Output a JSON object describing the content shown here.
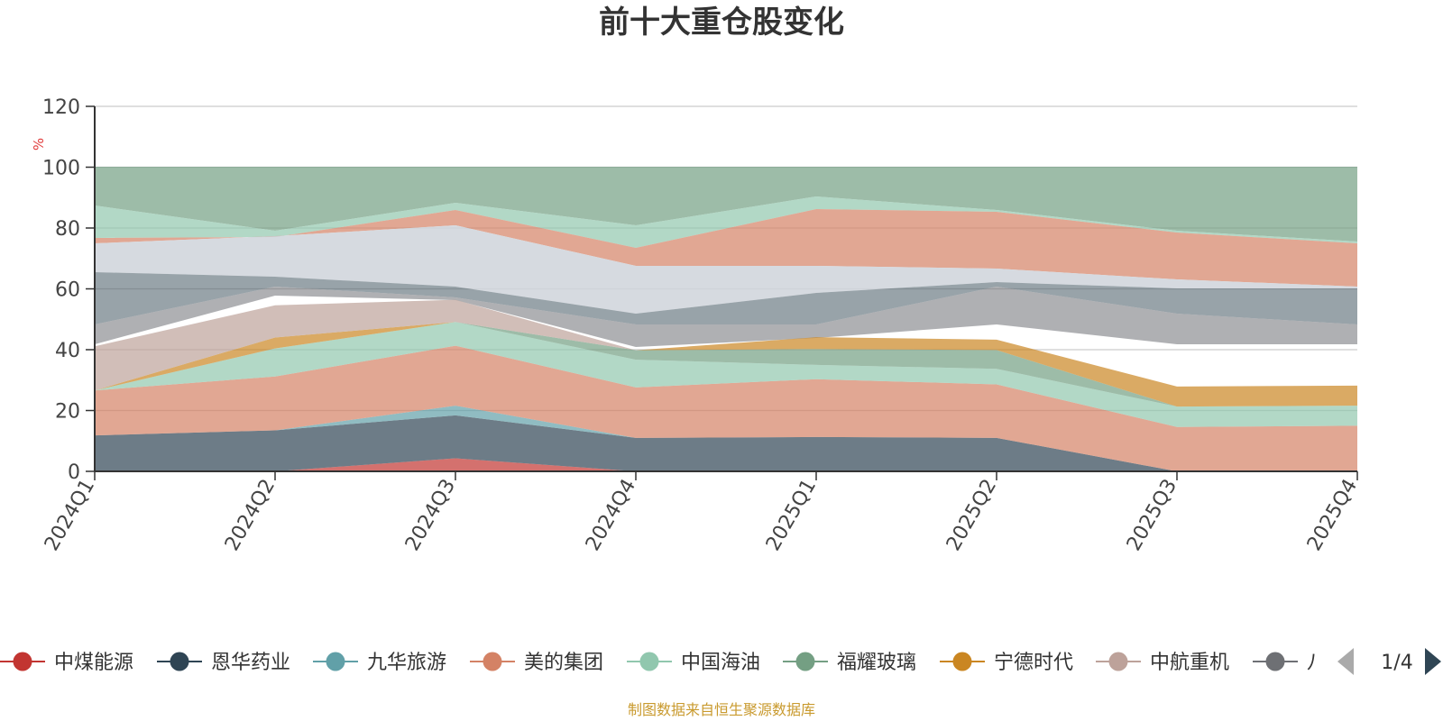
{
  "chart_data": {
    "type": "area",
    "title": "前十大重仓股变化",
    "ylabel": "%",
    "ylim": [
      0,
      120
    ],
    "yticks": [
      0,
      20,
      40,
      60,
      80,
      100,
      120
    ],
    "grid": true,
    "categories": [
      "2024Q1",
      "2024Q2",
      "2024Q3",
      "2024Q4",
      "2025Q1",
      "2025Q2",
      "2025Q3",
      "2025Q4"
    ],
    "series": [
      {
        "name": "中煤能源",
        "color": "#c23531",
        "values": [
          0,
          0,
          4.3,
          0,
          0,
          0,
          0,
          0
        ]
      },
      {
        "name": "恩华药业",
        "color": "#2f4554",
        "values": [
          11.8,
          13.5,
          14.1,
          11,
          11.3,
          11,
          0,
          0
        ]
      },
      {
        "name": "九华旅游",
        "color": "#61a0a8",
        "values": [
          0,
          0,
          3.2,
          0,
          0,
          0,
          0,
          0
        ]
      },
      {
        "name": "美的集团",
        "color": "#d48265",
        "values": [
          14.8,
          17.7,
          19.7,
          16.6,
          19,
          17.6,
          14.6,
          15
        ]
      },
      {
        "name": "中国海油",
        "color": "#91c7ae",
        "values": [
          0,
          9.2,
          7.8,
          9.1,
          4.7,
          5.1,
          6.7,
          6.6
        ]
      },
      {
        "name": "福耀玻璃",
        "color": "#749f83",
        "values": [
          0,
          0,
          0,
          3.1,
          5.2,
          6.2,
          0,
          0
        ]
      },
      {
        "name": "宁德时代",
        "color": "#ca8622",
        "values": [
          0,
          3.6,
          0,
          0,
          3.9,
          3.4,
          6.6,
          6.6
        ]
      },
      {
        "name": "中航重机",
        "color": "#bda29a",
        "values": [
          14.5,
          10.6,
          7.3,
          0,
          0,
          0,
          0,
          0
        ]
      },
      {
        "name": "八",
        "color": "#6e7074",
        "values": [
          0,
          0,
          0,
          0,
          0,
          0,
          0,
          0
        ]
      }
    ],
    "legend_position": "bottom",
    "legend_page": "1/4"
  },
  "source_note": "制图数据来自恒生聚源数据库"
}
